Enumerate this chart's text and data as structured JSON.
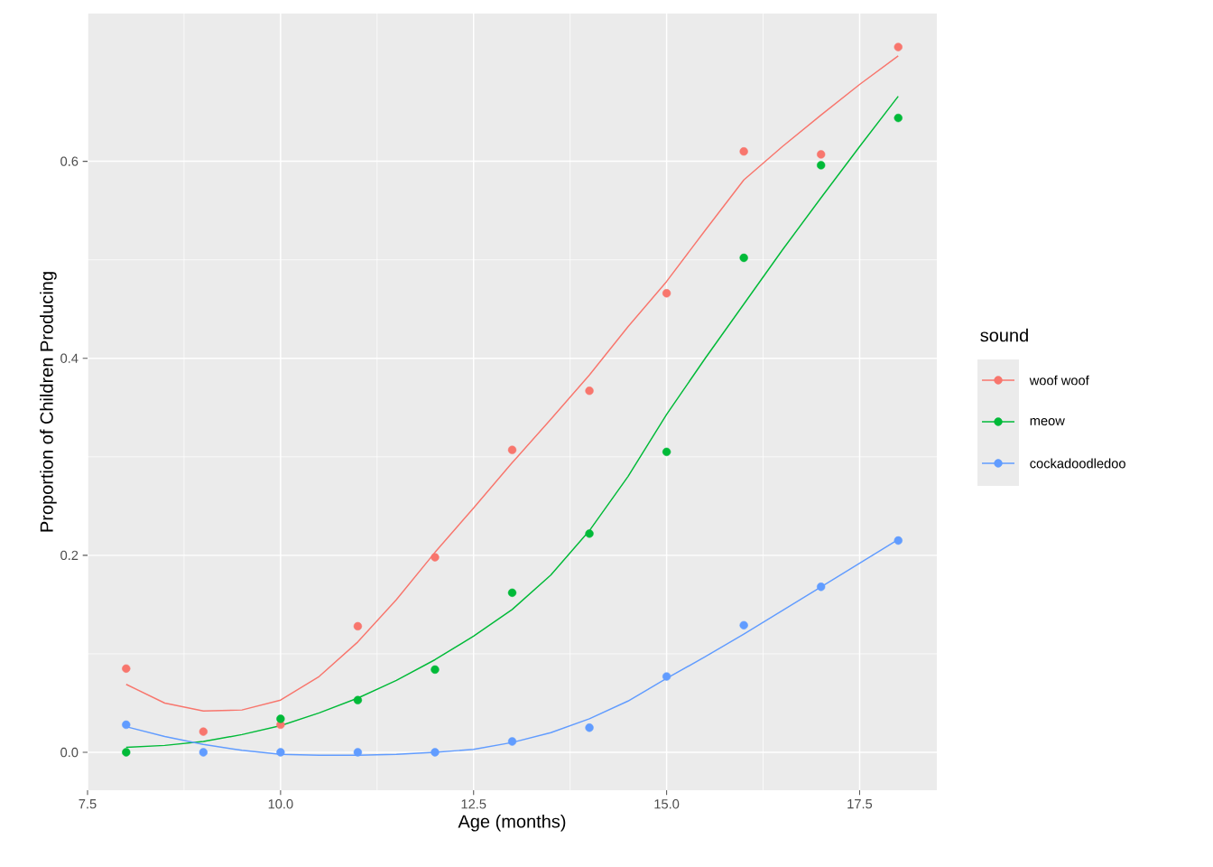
{
  "chart_data": {
    "type": "scatter",
    "xlabel": "Age (months)",
    "ylabel": "Proportion of Children Producing",
    "legend_title": "sound",
    "legend": "right",
    "grid": true,
    "line_style": "solid",
    "xlim": [
      7.5,
      18.5
    ],
    "ylim": [
      -0.0385,
      0.75
    ],
    "xticks": [
      {
        "value": 7.5,
        "label": "7.5"
      },
      {
        "value": 10,
        "label": "10.0"
      },
      {
        "value": 12.5,
        "label": "12.5"
      },
      {
        "value": 15,
        "label": "15.0"
      },
      {
        "value": 17.5,
        "label": "17.5"
      }
    ],
    "yticks": [
      {
        "value": 0,
        "label": "0.0"
      },
      {
        "value": 0.2,
        "label": "0.2"
      },
      {
        "value": 0.4,
        "label": "0.4"
      },
      {
        "value": 0.6,
        "label": "0.6"
      }
    ],
    "x": [
      8,
      9,
      10,
      11,
      12,
      13,
      14,
      15,
      16,
      17,
      18
    ],
    "series": [
      {
        "name": "woof woof",
        "marker": "circle",
        "color": "#f8766d",
        "values": [
          0.085,
          0.021,
          0.028,
          0.128,
          0.198,
          0.307,
          0.367,
          0.466,
          0.61,
          0.607,
          0.716
        ]
      },
      {
        "name": "meow",
        "marker": "circle",
        "color": "#00ba38",
        "values": [
          0.0,
          null,
          0.034,
          0.053,
          0.084,
          0.162,
          0.222,
          0.305,
          0.502,
          0.596,
          0.644
        ]
      },
      {
        "name": "cockadoodledoo",
        "marker": "circle",
        "color": "#619cff",
        "values": [
          0.028,
          0.0,
          0.0,
          0.0,
          0.0,
          0.011,
          0.025,
          0.077,
          0.129,
          0.168,
          0.215
        ]
      },
      {
        "type": "line",
        "marker": "none",
        "color": "#f8766d",
        "x": [
          8,
          8.5,
          9,
          9.5,
          10,
          10.5,
          11,
          11.5,
          12,
          12.5,
          13,
          13.5,
          14,
          14.5,
          15,
          15.5,
          16,
          16.5,
          17,
          17.5,
          18
        ],
        "values": [
          0.069,
          0.05,
          0.042,
          0.043,
          0.053,
          0.077,
          0.112,
          0.155,
          0.203,
          0.248,
          0.294,
          0.338,
          0.383,
          0.432,
          0.478,
          0.53,
          0.581,
          0.615,
          0.647,
          0.678,
          0.707
        ]
      },
      {
        "type": "line",
        "marker": "none",
        "color": "#00ba38",
        "x": [
          8,
          8.5,
          9,
          9.5,
          10,
          10.5,
          11,
          11.5,
          12,
          12.5,
          13,
          13.5,
          14,
          14.5,
          15,
          15.5,
          16,
          16.5,
          17,
          17.5,
          18
        ],
        "values": [
          0.005,
          0.007,
          0.011,
          0.018,
          0.027,
          0.04,
          0.055,
          0.073,
          0.094,
          0.118,
          0.145,
          0.18,
          0.225,
          0.28,
          0.343,
          0.4,
          0.455,
          0.51,
          0.563,
          0.615,
          0.666
        ]
      },
      {
        "type": "line",
        "marker": "none",
        "color": "#619cff",
        "x": [
          8,
          8.5,
          9,
          9.5,
          10,
          10.5,
          11,
          11.5,
          12,
          12.5,
          13,
          13.5,
          14,
          14.5,
          15,
          15.5,
          16,
          16.5,
          17,
          17.5,
          18
        ],
        "values": [
          0.026,
          0.016,
          0.008,
          0.002,
          -0.002,
          -0.003,
          -0.003,
          -0.002,
          0.0,
          0.003,
          0.01,
          0.02,
          0.034,
          0.052,
          0.075,
          0.097,
          0.12,
          0.144,
          0.168,
          0.192,
          0.216
        ]
      }
    ]
  }
}
